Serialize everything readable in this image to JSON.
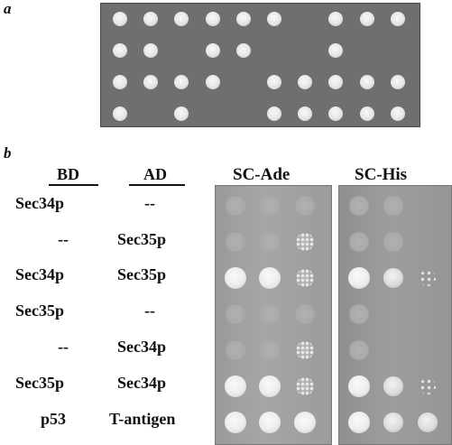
{
  "panel_a": {
    "label": "a",
    "grid": [
      [
        1,
        1,
        1,
        1,
        1,
        1,
        0,
        1,
        1,
        1
      ],
      [
        1,
        1,
        0,
        1,
        1,
        0,
        0,
        1,
        0,
        0
      ],
      [
        1,
        1,
        1,
        1,
        0,
        1,
        1,
        1,
        1,
        1
      ],
      [
        1,
        0,
        1,
        0,
        0,
        1,
        1,
        1,
        1,
        1
      ]
    ]
  },
  "panel_b": {
    "label": "b",
    "col_bd": "BD",
    "col_ad": "AD",
    "plate_ade_label": "SC-Ade",
    "plate_his_label": "SC-His",
    "rows": [
      {
        "bd": "Sec34p",
        "ad": "--",
        "ade": [
          "faint",
          "faint",
          "faint"
        ],
        "his": [
          "faint",
          "faint",
          "none"
        ]
      },
      {
        "bd": "--",
        "ad": "Sec35p",
        "ade": [
          "faint",
          "faint",
          "speckle"
        ],
        "his": [
          "faint",
          "faint",
          "none"
        ]
      },
      {
        "bd": "Sec34p",
        "ad": "Sec35p",
        "ade": [
          "full",
          "full",
          "speckle"
        ],
        "his": [
          "full",
          "medium",
          "sparse"
        ]
      },
      {
        "bd": "Sec35p",
        "ad": "--",
        "ade": [
          "faint",
          "faint",
          "faint"
        ],
        "his": [
          "faint",
          "none",
          "none"
        ]
      },
      {
        "bd": "--",
        "ad": "Sec34p",
        "ade": [
          "faint",
          "faint",
          "speckle"
        ],
        "his": [
          "faint",
          "none",
          "none"
        ]
      },
      {
        "bd": "Sec35p",
        "ad": "Sec34p",
        "ade": [
          "full",
          "full",
          "speckle"
        ],
        "his": [
          "full",
          "medium",
          "sparse"
        ]
      },
      {
        "bd": "p53",
        "ad": "T-antigen",
        "ade": [
          "full",
          "full",
          "full"
        ],
        "his": [
          "full",
          "medium",
          "medium"
        ]
      }
    ]
  }
}
